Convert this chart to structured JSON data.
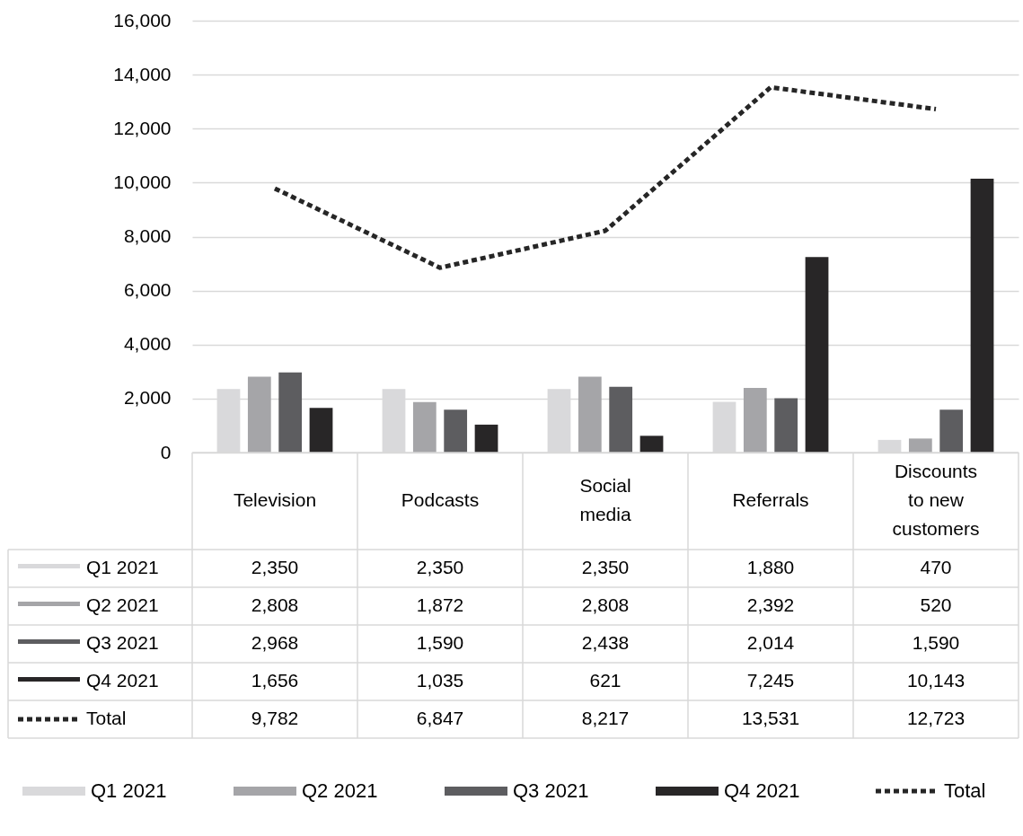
{
  "chart_data": {
    "type": "bar",
    "categories": [
      "Television",
      "Podcasts",
      "Social media",
      "Referrals",
      "Discounts to new customers"
    ],
    "series": [
      {
        "name": "Q1 2021",
        "color": "#d9d9db",
        "values": [
          2350,
          2350,
          2350,
          1880,
          470
        ],
        "value_labels": [
          "2,350",
          "2,350",
          "2,350",
          "1,880",
          "470"
        ]
      },
      {
        "name": "Q2 2021",
        "color": "#a5a5a8",
        "values": [
          2808,
          1872,
          2808,
          2392,
          520
        ],
        "value_labels": [
          "2,808",
          "1,872",
          "2,808",
          "2,392",
          "520"
        ]
      },
      {
        "name": "Q3 2021",
        "color": "#5d5d60",
        "values": [
          2968,
          1590,
          2438,
          2014,
          1590
        ],
        "value_labels": [
          "2,968",
          "1,590",
          "2,438",
          "2,014",
          "1,590"
        ]
      },
      {
        "name": "Q4 2021",
        "color": "#282627",
        "values": [
          1656,
          1035,
          621,
          7245,
          10143
        ],
        "value_labels": [
          "1,656",
          "1,035",
          "621",
          "7,245",
          "10,143"
        ]
      },
      {
        "name": "Total",
        "type": "line",
        "color": "#262626",
        "line_style": "dotted",
        "values": [
          9782,
          6847,
          8217,
          13531,
          12723
        ],
        "value_labels": [
          "9,782",
          "6,847",
          "8,217",
          "13,531",
          "12,723"
        ]
      }
    ],
    "ylim": [
      0,
      16000
    ],
    "yticks": [
      {
        "value": 0,
        "label": "0"
      },
      {
        "value": 2000,
        "label": "2,000"
      },
      {
        "value": 4000,
        "label": "4,000"
      },
      {
        "value": 6000,
        "label": "6,000"
      },
      {
        "value": 8000,
        "label": "8,000"
      },
      {
        "value": 10000,
        "label": "10,000"
      },
      {
        "value": 12000,
        "label": "12,000"
      },
      {
        "value": 14000,
        "label": "14,000"
      },
      {
        "value": 16000,
        "label": "16,000"
      }
    ],
    "grid": "y",
    "legend": "bottom"
  }
}
